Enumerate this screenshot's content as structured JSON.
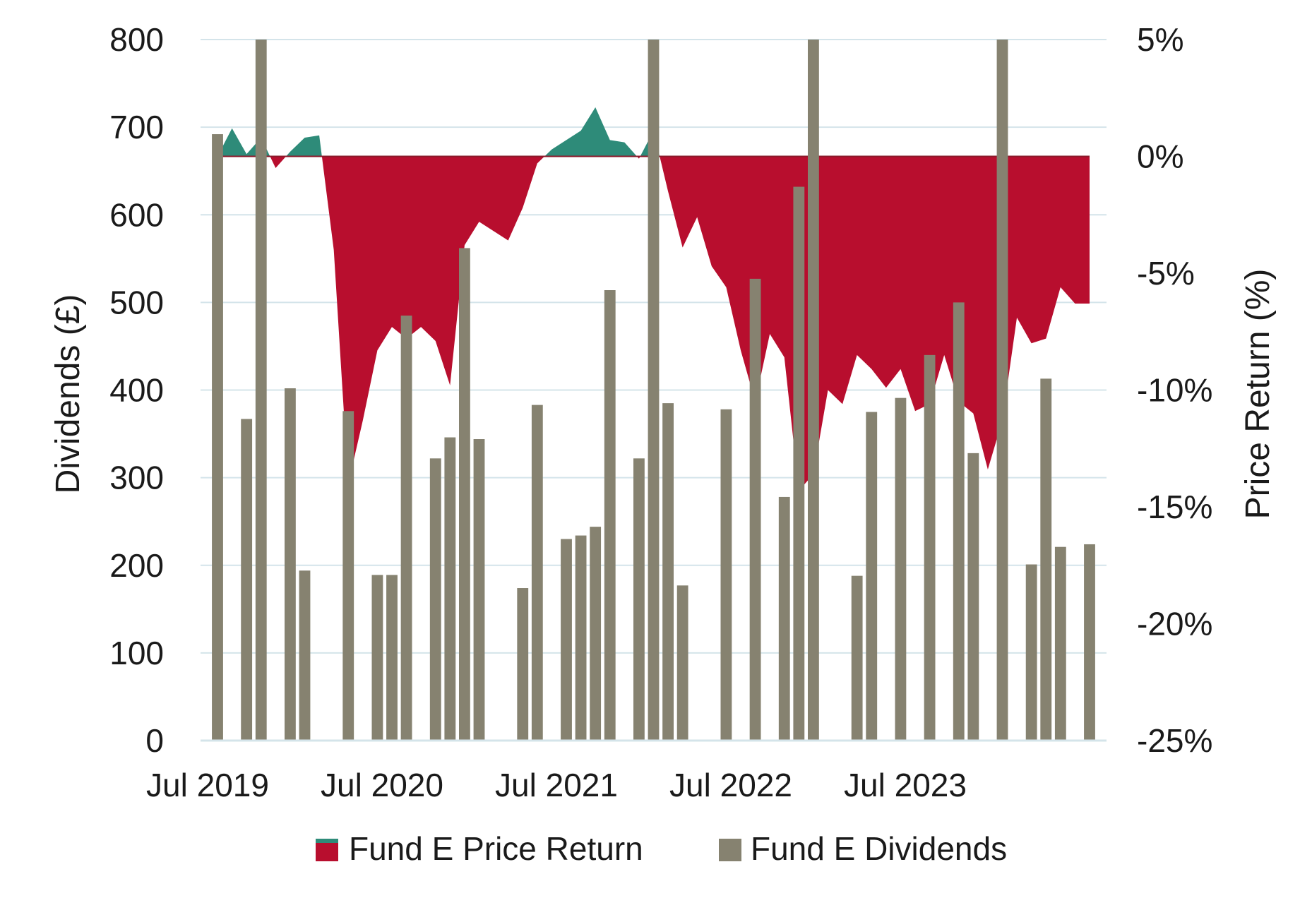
{
  "chart_data": {
    "type": "bar+area",
    "x": [
      "2019-07",
      "2019-08",
      "2019-09",
      "2019-10",
      "2019-11",
      "2019-12",
      "2020-01",
      "2020-02",
      "2020-03",
      "2020-04",
      "2020-05",
      "2020-06",
      "2020-07",
      "2020-08",
      "2020-09",
      "2020-10",
      "2020-11",
      "2020-12",
      "2021-01",
      "2021-02",
      "2021-03",
      "2021-04",
      "2021-05",
      "2021-06",
      "2021-07",
      "2021-08",
      "2021-09",
      "2021-10",
      "2021-11",
      "2021-12",
      "2022-01",
      "2022-02",
      "2022-03",
      "2022-04",
      "2022-05",
      "2022-06",
      "2022-07",
      "2022-08",
      "2022-09",
      "2022-10",
      "2022-11",
      "2022-12",
      "2023-01",
      "2023-02",
      "2023-03",
      "2023-04",
      "2023-05",
      "2023-06",
      "2023-07",
      "2023-08",
      "2023-09",
      "2023-10",
      "2023-11",
      "2023-12",
      "2024-01",
      "2024-02",
      "2024-03",
      "2024-04",
      "2024-05",
      "2024-06",
      "2024-07"
    ],
    "x_tick_labels": [
      {
        "x": "2019-07",
        "label": "Jul 2019"
      },
      {
        "x": "2020-07",
        "label": "Jul 2020"
      },
      {
        "x": "2021-07",
        "label": "Jul 2021"
      },
      {
        "x": "2022-07",
        "label": "Jul 2022"
      },
      {
        "x": "2023-07",
        "label": "Jul 2023"
      }
    ],
    "y_left": {
      "label": "Dividends (£)",
      "range": [
        0,
        800
      ],
      "ticks": [
        "0",
        "100",
        "200",
        "300",
        "400",
        "500",
        "600",
        "700",
        "800"
      ]
    },
    "y_right": {
      "label": "Price Return (%)",
      "range": [
        -25,
        5
      ],
      "ticks": [
        "-25%",
        "-20%",
        "-15%",
        "-10%",
        "-5%",
        "0%",
        "5%"
      ]
    },
    "grid": true,
    "legend_position": "bottom",
    "series": [
      {
        "name": "Fund E Price Return",
        "kind": "area",
        "axis": "right",
        "positive_color": "#2e8b79",
        "negative_color": "#b80e2e",
        "values": [
          0,
          1.2,
          0.1,
          0.8,
          -0.5,
          0.2,
          0.8,
          0.9,
          -4,
          -14,
          -11.3,
          -8.3,
          -7.3,
          -7.8,
          -7.3,
          -7.9,
          -9.8,
          -3.8,
          -2.8,
          -3.2,
          -3.6,
          -2.2,
          -0.3,
          0.3,
          0.7,
          1.1,
          2.1,
          0.7,
          0.6,
          -0.1,
          1.1,
          -1.5,
          -3.9,
          -2.6,
          -4.7,
          -5.6,
          -8.3,
          -10.5,
          -7.6,
          -8.6,
          -14.3,
          -13.6,
          -10,
          -10.6,
          -8.5,
          -9.1,
          -9.9,
          -9.1,
          -10.9,
          -10.6,
          -8.5,
          -10.5,
          -11,
          -13.4,
          -11.3,
          -6.9,
          -8,
          -7.8,
          -5.6,
          -6.3,
          -6.3
        ]
      },
      {
        "name": "Fund E Dividends",
        "kind": "bar",
        "axis": "left",
        "color": "#868270",
        "values": [
          692,
          0,
          367,
          800,
          0,
          402,
          194,
          0,
          0,
          376,
          0,
          189,
          189,
          485,
          0,
          322,
          346,
          562,
          344,
          0,
          0,
          174,
          383,
          0,
          230,
          234,
          244,
          514,
          0,
          322,
          800,
          385,
          177,
          0,
          0,
          378,
          0,
          527,
          0,
          278,
          632,
          800,
          0,
          0,
          188,
          375,
          0,
          391,
          0,
          440,
          0,
          500,
          328,
          0,
          800,
          0,
          201,
          413,
          221,
          0,
          224
        ]
      }
    ]
  }
}
